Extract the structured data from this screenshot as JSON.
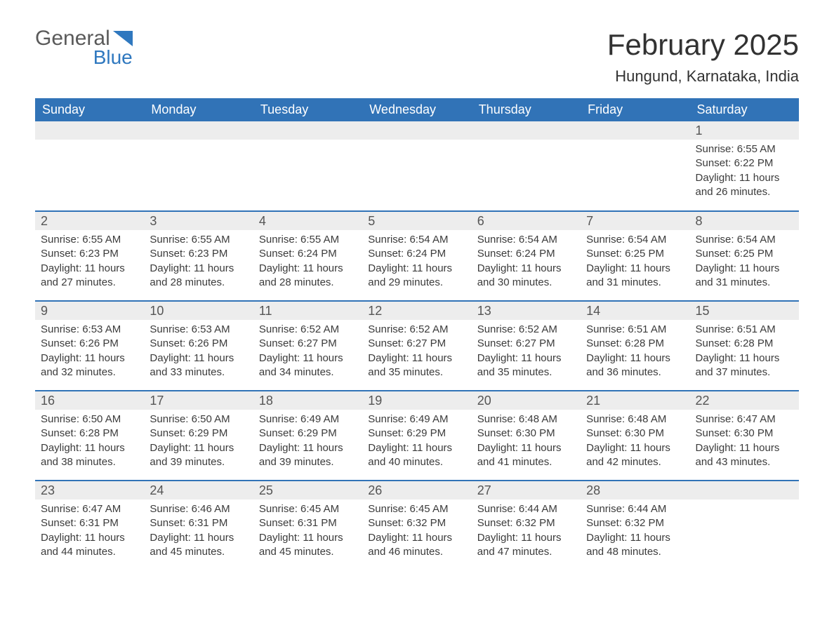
{
  "logo": {
    "word1": "General",
    "word2": "Blue",
    "triangle_color": "#2f78bf"
  },
  "title": "February 2025",
  "location": "Hungund, Karnataka, India",
  "colors": {
    "header_bg": "#3173b7",
    "header_text": "#ffffff",
    "row_border": "#3173b7",
    "daynum_bg": "#ededed",
    "text": "#333333"
  },
  "weekdays": [
    "Sunday",
    "Monday",
    "Tuesday",
    "Wednesday",
    "Thursday",
    "Friday",
    "Saturday"
  ],
  "weeks": [
    [
      {
        "blank": true
      },
      {
        "blank": true
      },
      {
        "blank": true
      },
      {
        "blank": true
      },
      {
        "blank": true
      },
      {
        "blank": true
      },
      {
        "n": "1",
        "sunrise": "Sunrise: 6:55 AM",
        "sunset": "Sunset: 6:22 PM",
        "daylight": "Daylight: 11 hours and 26 minutes."
      }
    ],
    [
      {
        "n": "2",
        "sunrise": "Sunrise: 6:55 AM",
        "sunset": "Sunset: 6:23 PM",
        "daylight": "Daylight: 11 hours and 27 minutes."
      },
      {
        "n": "3",
        "sunrise": "Sunrise: 6:55 AM",
        "sunset": "Sunset: 6:23 PM",
        "daylight": "Daylight: 11 hours and 28 minutes."
      },
      {
        "n": "4",
        "sunrise": "Sunrise: 6:55 AM",
        "sunset": "Sunset: 6:24 PM",
        "daylight": "Daylight: 11 hours and 28 minutes."
      },
      {
        "n": "5",
        "sunrise": "Sunrise: 6:54 AM",
        "sunset": "Sunset: 6:24 PM",
        "daylight": "Daylight: 11 hours and 29 minutes."
      },
      {
        "n": "6",
        "sunrise": "Sunrise: 6:54 AM",
        "sunset": "Sunset: 6:24 PM",
        "daylight": "Daylight: 11 hours and 30 minutes."
      },
      {
        "n": "7",
        "sunrise": "Sunrise: 6:54 AM",
        "sunset": "Sunset: 6:25 PM",
        "daylight": "Daylight: 11 hours and 31 minutes."
      },
      {
        "n": "8",
        "sunrise": "Sunrise: 6:54 AM",
        "sunset": "Sunset: 6:25 PM",
        "daylight": "Daylight: 11 hours and 31 minutes."
      }
    ],
    [
      {
        "n": "9",
        "sunrise": "Sunrise: 6:53 AM",
        "sunset": "Sunset: 6:26 PM",
        "daylight": "Daylight: 11 hours and 32 minutes."
      },
      {
        "n": "10",
        "sunrise": "Sunrise: 6:53 AM",
        "sunset": "Sunset: 6:26 PM",
        "daylight": "Daylight: 11 hours and 33 minutes."
      },
      {
        "n": "11",
        "sunrise": "Sunrise: 6:52 AM",
        "sunset": "Sunset: 6:27 PM",
        "daylight": "Daylight: 11 hours and 34 minutes."
      },
      {
        "n": "12",
        "sunrise": "Sunrise: 6:52 AM",
        "sunset": "Sunset: 6:27 PM",
        "daylight": "Daylight: 11 hours and 35 minutes."
      },
      {
        "n": "13",
        "sunrise": "Sunrise: 6:52 AM",
        "sunset": "Sunset: 6:27 PM",
        "daylight": "Daylight: 11 hours and 35 minutes."
      },
      {
        "n": "14",
        "sunrise": "Sunrise: 6:51 AM",
        "sunset": "Sunset: 6:28 PM",
        "daylight": "Daylight: 11 hours and 36 minutes."
      },
      {
        "n": "15",
        "sunrise": "Sunrise: 6:51 AM",
        "sunset": "Sunset: 6:28 PM",
        "daylight": "Daylight: 11 hours and 37 minutes."
      }
    ],
    [
      {
        "n": "16",
        "sunrise": "Sunrise: 6:50 AM",
        "sunset": "Sunset: 6:28 PM",
        "daylight": "Daylight: 11 hours and 38 minutes."
      },
      {
        "n": "17",
        "sunrise": "Sunrise: 6:50 AM",
        "sunset": "Sunset: 6:29 PM",
        "daylight": "Daylight: 11 hours and 39 minutes."
      },
      {
        "n": "18",
        "sunrise": "Sunrise: 6:49 AM",
        "sunset": "Sunset: 6:29 PM",
        "daylight": "Daylight: 11 hours and 39 minutes."
      },
      {
        "n": "19",
        "sunrise": "Sunrise: 6:49 AM",
        "sunset": "Sunset: 6:29 PM",
        "daylight": "Daylight: 11 hours and 40 minutes."
      },
      {
        "n": "20",
        "sunrise": "Sunrise: 6:48 AM",
        "sunset": "Sunset: 6:30 PM",
        "daylight": "Daylight: 11 hours and 41 minutes."
      },
      {
        "n": "21",
        "sunrise": "Sunrise: 6:48 AM",
        "sunset": "Sunset: 6:30 PM",
        "daylight": "Daylight: 11 hours and 42 minutes."
      },
      {
        "n": "22",
        "sunrise": "Sunrise: 6:47 AM",
        "sunset": "Sunset: 6:30 PM",
        "daylight": "Daylight: 11 hours and 43 minutes."
      }
    ],
    [
      {
        "n": "23",
        "sunrise": "Sunrise: 6:47 AM",
        "sunset": "Sunset: 6:31 PM",
        "daylight": "Daylight: 11 hours and 44 minutes."
      },
      {
        "n": "24",
        "sunrise": "Sunrise: 6:46 AM",
        "sunset": "Sunset: 6:31 PM",
        "daylight": "Daylight: 11 hours and 45 minutes."
      },
      {
        "n": "25",
        "sunrise": "Sunrise: 6:45 AM",
        "sunset": "Sunset: 6:31 PM",
        "daylight": "Daylight: 11 hours and 45 minutes."
      },
      {
        "n": "26",
        "sunrise": "Sunrise: 6:45 AM",
        "sunset": "Sunset: 6:32 PM",
        "daylight": "Daylight: 11 hours and 46 minutes."
      },
      {
        "n": "27",
        "sunrise": "Sunrise: 6:44 AM",
        "sunset": "Sunset: 6:32 PM",
        "daylight": "Daylight: 11 hours and 47 minutes."
      },
      {
        "n": "28",
        "sunrise": "Sunrise: 6:44 AM",
        "sunset": "Sunset: 6:32 PM",
        "daylight": "Daylight: 11 hours and 48 minutes."
      },
      {
        "blank": true
      }
    ]
  ]
}
